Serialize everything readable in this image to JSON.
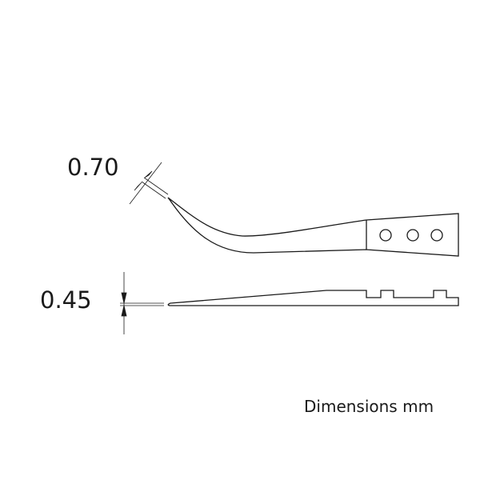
{
  "dimensions": {
    "tip_width": "0.70",
    "tip_thickness": "0.45"
  },
  "units_label": "Dimensions mm",
  "colors": {
    "line": "#1a1a1a",
    "background": "#ffffff"
  }
}
